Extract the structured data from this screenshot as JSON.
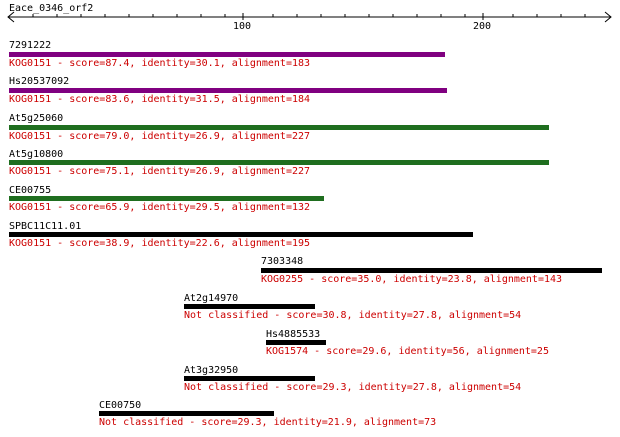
{
  "ruler": {
    "query_name": "Eace_0346_orf2",
    "tick_labels": [
      "100",
      "200"
    ],
    "color": "#000000"
  },
  "colors": {
    "purple": "#800080",
    "green": "#1f6e1f",
    "black": "#000000",
    "annotation": "#cc0000"
  },
  "hits": [
    {
      "name": "7291222",
      "bar_color": "purple",
      "info": "KOG0151 - score=87.4, identity=30.1, alignment=183"
    },
    {
      "name": "Hs20537092",
      "bar_color": "purple",
      "info": "KOG0151 - score=83.6, identity=31.5, alignment=184"
    },
    {
      "name": "At5g25060",
      "bar_color": "green",
      "info": "KOG0151 - score=79.0, identity=26.9, alignment=227"
    },
    {
      "name": "At5g10800",
      "bar_color": "green",
      "info": "KOG0151 - score=75.1, identity=26.9, alignment=227"
    },
    {
      "name": "CE00755",
      "bar_color": "green",
      "info": "KOG0151 - score=65.9, identity=29.5, alignment=132"
    },
    {
      "name": "SPBC11C11.01",
      "bar_color": "black",
      "info": "KOG0151 - score=38.9, identity=22.6, alignment=195"
    },
    {
      "name": "7303348",
      "bar_color": "black",
      "info": "KOG0255 - score=35.0, identity=23.8, alignment=143"
    },
    {
      "name": "At2g14970",
      "bar_color": "black",
      "info": "Not classified - score=30.8, identity=27.8, alignment=54"
    },
    {
      "name": "Hs4885533",
      "bar_color": "black",
      "info": "KOG1574 - score=29.6, identity=56, alignment=25"
    },
    {
      "name": "At3g32950",
      "bar_color": "black",
      "info": "Not classified - score=29.3, identity=27.8, alignment=54"
    },
    {
      "name": "CE00750",
      "bar_color": "black",
      "info": "Not classified - score=29.3, identity=21.9, alignment=73"
    }
  ]
}
